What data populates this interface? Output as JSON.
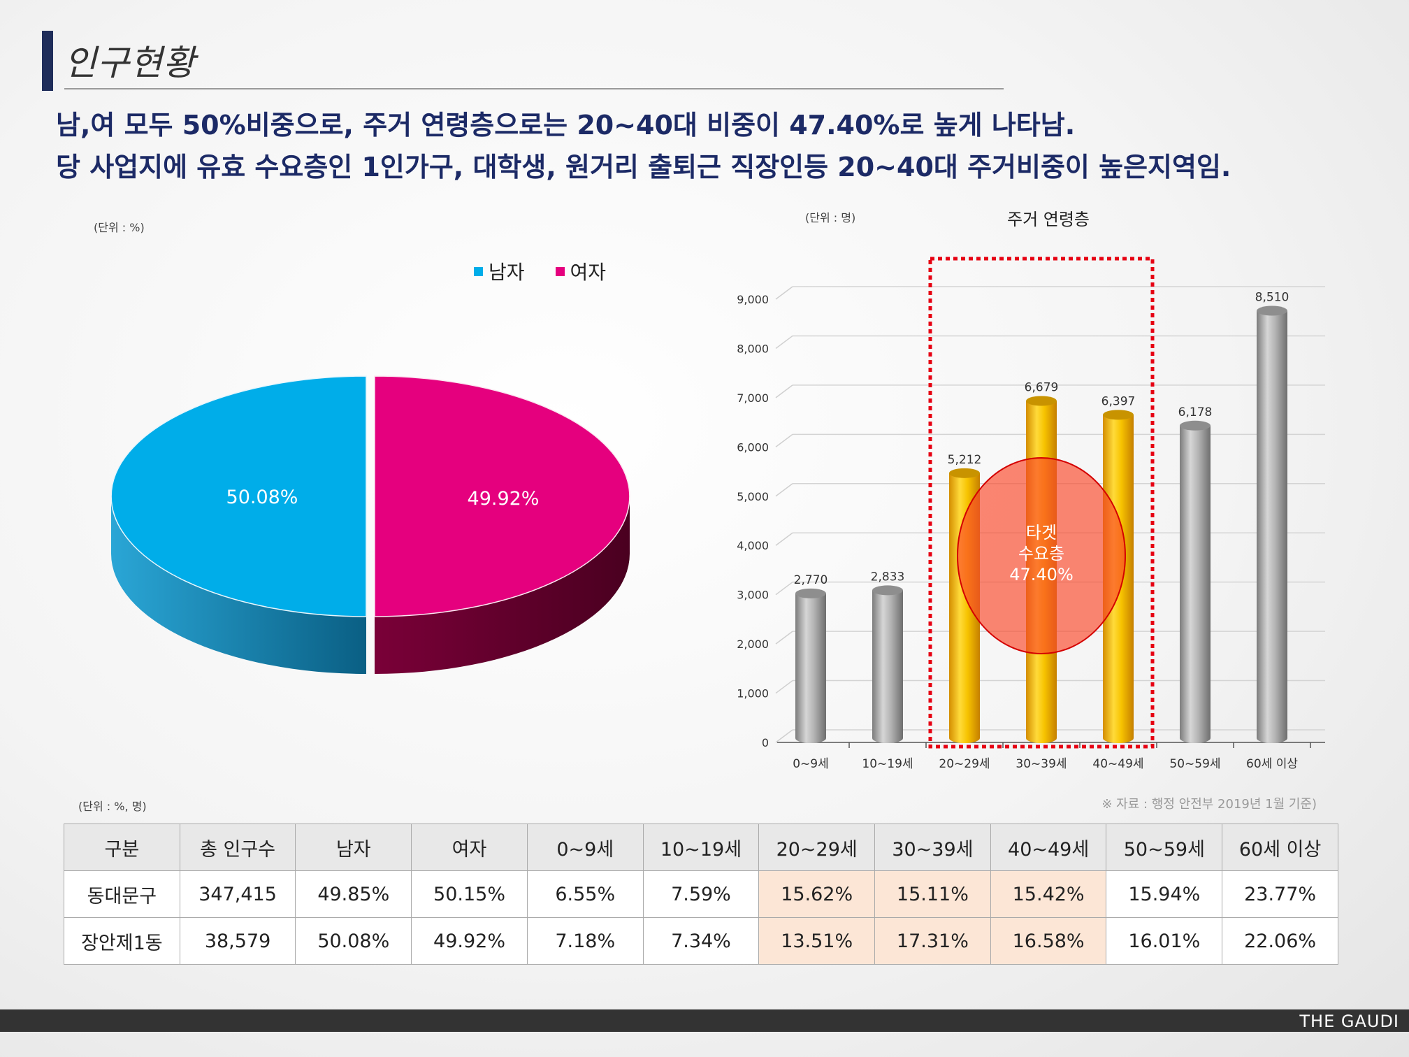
{
  "page": {
    "title": "인구현황",
    "headline_1": "남,여 모두 50%비중으로, 주거 연령층으로는 20~40대 비중이 47.40%로 높게 나타남.",
    "headline_2": "당 사업지에 유효 수요층인 1인가구, 대학생, 원거리 출퇴근 직장인등 20~40대 주거비중이 높은지역임.",
    "source_note": "※ 자료 : 행정 안전부 2019년 1월 기준)",
    "footer_brand": "THE GAUDI"
  },
  "chart_data": [
    {
      "type": "pie",
      "unit_note": "(단위 : %)",
      "labels": [
        "남자",
        "여자"
      ],
      "values": [
        50.08,
        49.92
      ],
      "value_labels": [
        "50.08%",
        "49.92%"
      ],
      "colors": [
        "#00ade9",
        "#e5007e"
      ],
      "legend": "top-right"
    },
    {
      "type": "bar",
      "title": "주거 연령층",
      "unit_note": "(단위 : 명)",
      "categories": [
        "0~9세",
        "10~19세",
        "20~29세",
        "30~39세",
        "40~49세",
        "50~59세",
        "60세 이상"
      ],
      "values": [
        2770,
        2833,
        5212,
        6679,
        6397,
        6178,
        8510
      ],
      "value_labels": [
        "2,770",
        "2,833",
        "5,212",
        "6,679",
        "6,397",
        "6,178",
        "8,510"
      ],
      "highlighted": [
        false,
        false,
        true,
        true,
        true,
        false,
        false
      ],
      "colors": {
        "normal": "#a9a9a9",
        "highlight": "#f5b800"
      },
      "ylim": [
        0,
        9000
      ],
      "yticks": [
        0,
        1000,
        2000,
        3000,
        4000,
        5000,
        6000,
        7000,
        8000,
        9000
      ],
      "ytick_labels": [
        "0",
        "1,000",
        "2,000",
        "3,000",
        "4,000",
        "5,000",
        "6,000",
        "7,000",
        "8,000",
        "9,000"
      ],
      "grid": true,
      "annotation": {
        "lines": [
          "타겟",
          "수요층",
          "47.40%"
        ]
      }
    }
  ],
  "table": {
    "unit_note": "(단위 : %, 명)",
    "headers": [
      "구분",
      "총 인구수",
      "남자",
      "여자",
      "0~9세",
      "10~19세",
      "20~29세",
      "30~39세",
      "40~49세",
      "50~59세",
      "60세 이상"
    ],
    "rows": [
      [
        "동대문구",
        "347,415",
        "49.85%",
        "50.15%",
        "6.55%",
        "7.59%",
        "15.62%",
        "15.11%",
        "15.42%",
        "15.94%",
        "23.77%"
      ],
      [
        "장안제1동",
        "38,579",
        "50.08%",
        "49.92%",
        "7.18%",
        "7.34%",
        "13.51%",
        "17.31%",
        "16.58%",
        "16.01%",
        "22.06%"
      ]
    ],
    "highlight_columns": [
      6,
      7,
      8
    ]
  }
}
